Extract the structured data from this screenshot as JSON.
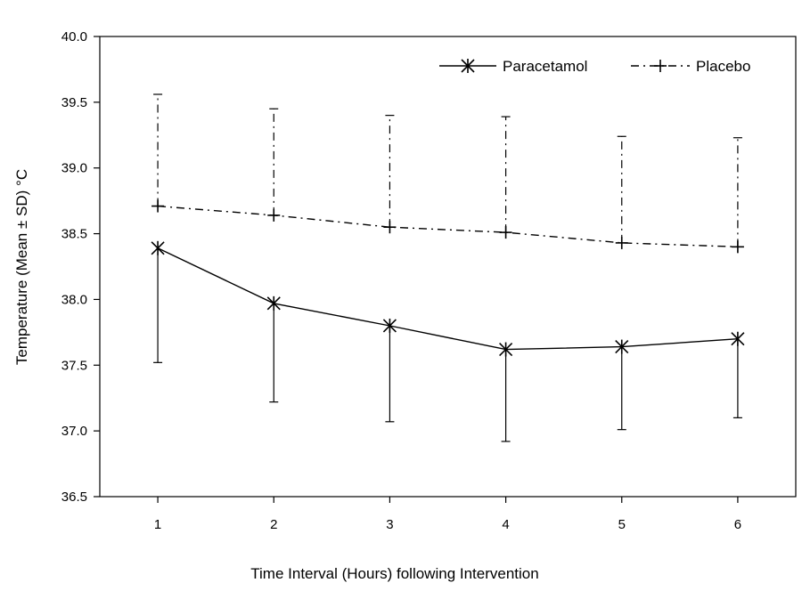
{
  "chart_data": {
    "type": "line",
    "title": "",
    "xlabel": "Time Interval (Hours) following Intervention",
    "ylabel": "Temperature (Mean ± SD) °C",
    "x": [
      1,
      2,
      3,
      4,
      5,
      6
    ],
    "xlim": [
      0.5,
      6.5
    ],
    "ylim": [
      36.5,
      40.0
    ],
    "y_ticks": [
      "36.5",
      "37.0",
      "37.5",
      "38.0",
      "38.5",
      "39.0",
      "39.5",
      "40.0"
    ],
    "x_ticks": [
      "1",
      "2",
      "3",
      "4",
      "5",
      "6"
    ],
    "grid": false,
    "legend_position": "top-right",
    "series": [
      {
        "name": "Paracetamol",
        "line_style": "solid",
        "marker": "asterisk",
        "error_bar_direction": "down",
        "values": [
          38.39,
          37.97,
          37.8,
          37.62,
          37.64,
          37.7
        ],
        "sd": [
          0.87,
          0.75,
          0.73,
          0.7,
          0.63,
          0.6
        ]
      },
      {
        "name": "Placebo",
        "line_style": "dash-dot",
        "marker": "plus",
        "error_bar_direction": "up",
        "values": [
          38.71,
          38.64,
          38.55,
          38.51,
          38.43,
          38.4
        ],
        "sd": [
          0.85,
          0.81,
          0.85,
          0.88,
          0.81,
          0.83
        ]
      }
    ]
  }
}
